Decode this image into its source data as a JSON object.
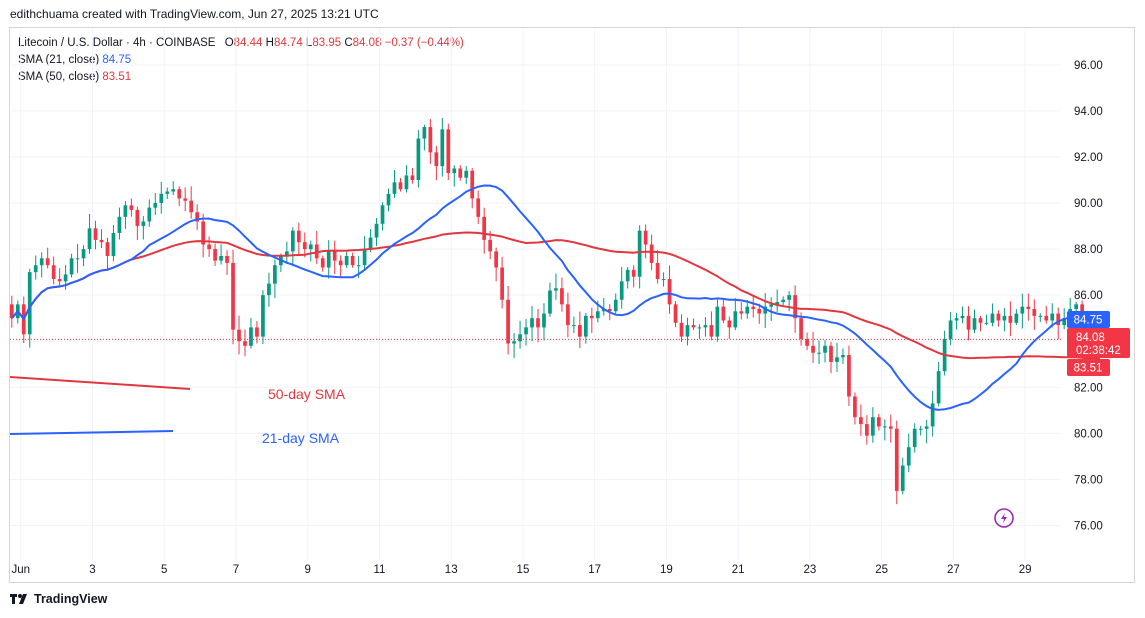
{
  "header": {
    "attribution": "edithchuama created with TradingView.com, Jun 27, 2025 13:21 UTC"
  },
  "legend": {
    "symbol": "Litecoin / U.S. Dollar · 4h · COINBASE",
    "o_label": "O",
    "o_value": "84.44",
    "h_label": "H",
    "h_value": "84.74",
    "l_label": "L",
    "l_value": "83.95",
    "c_label": "C",
    "c_value": "84.08",
    "change": "−0.37 (−0.44%)",
    "sma21_label": "SMA (21, close)",
    "sma21_value": "84.75",
    "sma50_label": "SMA (50, close)",
    "sma50_value": "83.51"
  },
  "footer": {
    "brand": "TradingView"
  },
  "colors": {
    "up": "#089981",
    "down": "#f23645",
    "sma21": "#2962ff",
    "sma50": "#e0383e"
  },
  "chart_data": {
    "type": "candlestick",
    "x_ticks": [
      "Jun",
      "3",
      "5",
      "7",
      "9",
      "11",
      "13",
      "15",
      "17",
      "19",
      "21",
      "23",
      "25",
      "27",
      "29"
    ],
    "x_tick_days": [
      1,
      3,
      5,
      7,
      9,
      11,
      13,
      15,
      17,
      19,
      21,
      23,
      25,
      27,
      29
    ],
    "y_ticks": [
      "76.00",
      "78.00",
      "80.00",
      "82.00",
      "84.00",
      "86.00",
      "88.00",
      "90.00",
      "92.00",
      "94.00",
      "96.00"
    ],
    "y_tick_values": [
      76,
      78,
      80,
      82,
      84,
      86,
      88,
      90,
      92,
      94,
      96
    ],
    "ylim": [
      74.5,
      97.6
    ],
    "day_range": [
      0.7,
      30.0
    ],
    "candle_interval_days": 0.1667,
    "closes": [
      85.0,
      85.6,
      84.3,
      87.0,
      87.3,
      87.6,
      87.3,
      86.7,
      86.6,
      86.9,
      87.6,
      87.6,
      88.0,
      88.9,
      88.4,
      88.3,
      87.7,
      88.7,
      89.4,
      89.9,
      89.7,
      89.0,
      89.2,
      89.8,
      90.0,
      90.4,
      90.5,
      90.6,
      90.2,
      90.1,
      89.6,
      89.2,
      88.2,
      88.0,
      87.5,
      87.7,
      87.4,
      84.5,
      84.0,
      83.8,
      84.6,
      84.2,
      86.0,
      86.5,
      87.3,
      87.7,
      87.9,
      88.8,
      88.3,
      88.0,
      88.2,
      87.6,
      87.2,
      87.9,
      87.5,
      87.3,
      87.7,
      87.3,
      87.3,
      88.0,
      88.5,
      89.1,
      89.9,
      90.4,
      90.9,
      90.6,
      91.2,
      91.0,
      92.8,
      93.3,
      92.2,
      91.6,
      93.2,
      91.3,
      91.5,
      91.1,
      91.4,
      90.2,
      89.4,
      88.4,
      87.9,
      87.2,
      85.8,
      83.9,
      84.0,
      84.3,
      84.6,
      85.0,
      84.6,
      85.2,
      86.2,
      86.3,
      85.6,
      84.7,
      84.7,
      84.2,
      85.1,
      85.0,
      85.3,
      85.4,
      85.3,
      85.8,
      86.6,
      87.1,
      86.8,
      88.8,
      88.2,
      87.4,
      86.7,
      86.7,
      85.6,
      84.8,
      84.2,
      84.7,
      84.6,
      84.6,
      84.7,
      84.2,
      85.5,
      84.9,
      84.6,
      85.3,
      85.2,
      85.5,
      85.4,
      85.2,
      85.5,
      85.6,
      85.7,
      85.8,
      86.0,
      85.0,
      84.1,
      83.8,
      83.5,
      83.5,
      83.8,
      83.1,
      83.3,
      83.4,
      81.6,
      80.7,
      80.4,
      79.9,
      80.7,
      80.3,
      80.3,
      80.2,
      77.5,
      78.6,
      79.4,
      80.2,
      80.2,
      80.3,
      81.3,
      82.7,
      84.1,
      84.9,
      85.0,
      85.1,
      84.5,
      85.0,
      84.8,
      84.8,
      85.2,
      84.9,
      85.1,
      84.8,
      85.2,
      85.5,
      85.4,
      85.1,
      85.1,
      84.9,
      85.2,
      84.7,
      85.0,
      85.4,
      85.6,
      84.9,
      84.7,
      84.4,
      84.08
    ],
    "series": [
      {
        "name": "SMA (21, close)",
        "role": "sma21"
      },
      {
        "name": "SMA (50, close)",
        "role": "sma50"
      }
    ],
    "annotations": {
      "sma50": "50-day SMA",
      "sma21": "21-day SMA"
    },
    "last_price": "84.08",
    "countdown": "02:38:42",
    "sma21_last": "84.75",
    "sma50_last": "83.51"
  }
}
